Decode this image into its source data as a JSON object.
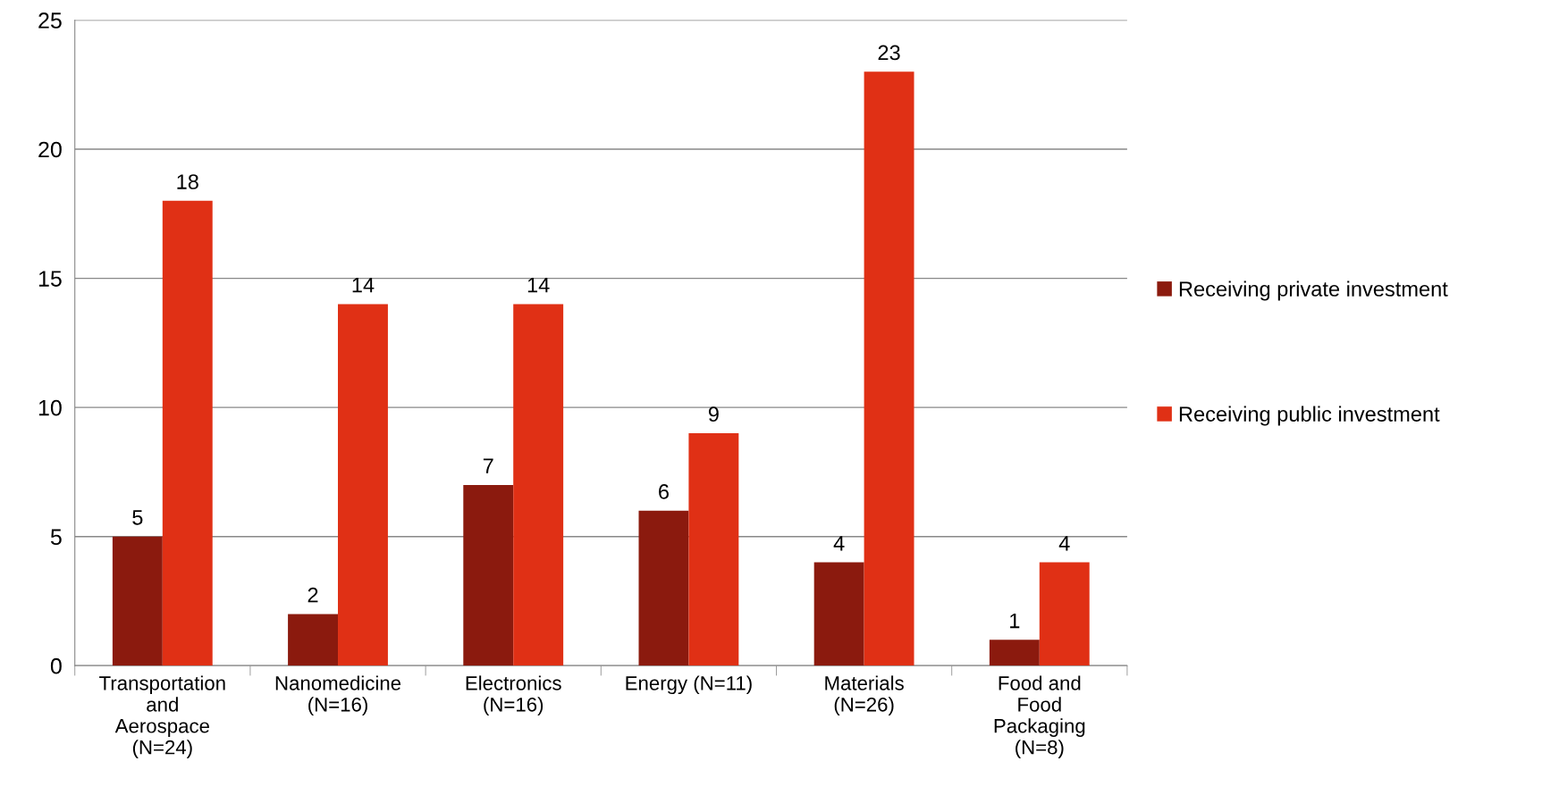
{
  "chart_data": {
    "type": "bar",
    "categories": [
      "Transportation\nand\nAerospace\n(N=24)",
      "Nanomedicine\n(N=16)",
      "Electronics\n(N=16)",
      "Energy (N=11)",
      "Materials\n(N=26)",
      "Food and\nFood\nPackaging\n(N=8)"
    ],
    "series": [
      {
        "name": "Receiving private investment",
        "color": "#8b1a0e",
        "values": [
          5,
          2,
          7,
          6,
          4,
          1
        ]
      },
      {
        "name": "Receiving public investment",
        "color": "#e03015",
        "values": [
          18,
          14,
          14,
          9,
          23,
          4
        ]
      }
    ],
    "ylim": [
      0,
      25
    ],
    "yticks": [
      0,
      5,
      10,
      15,
      20,
      25
    ],
    "grid": "y",
    "legend": "right",
    "data_labels": true
  }
}
